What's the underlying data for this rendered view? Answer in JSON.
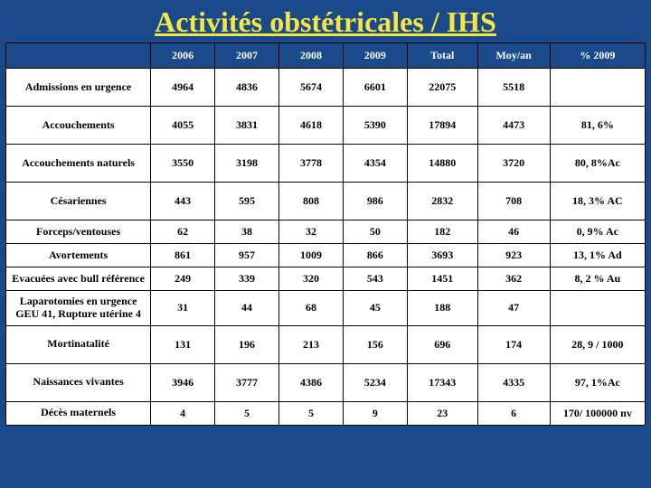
{
  "title": "Activités obstétricales / IHS",
  "colors": {
    "background": "#1a4a8a",
    "title_color": "#f5e642",
    "header_bg": "#1a4a8a",
    "header_text": "#ffffff",
    "cell_bg": "#ffffff",
    "cell_text": "#000000",
    "border": "#000000"
  },
  "columns": [
    "",
    "2006",
    "2007",
    "2008",
    "2009",
    "Total",
    "Moy/an",
    "% 2009"
  ],
  "rows": [
    {
      "label": "Admissions en urgence",
      "cells": [
        "4964",
        "4836",
        "5674",
        "6601",
        "22075",
        "5518",
        ""
      ]
    },
    {
      "label": "Accouchements",
      "cells": [
        "4055",
        "3831",
        "4618",
        "5390",
        "17894",
        "4473",
        "81, 6%"
      ]
    },
    {
      "label": "Accouchements naturels",
      "cells": [
        "3550",
        "3198",
        "3778",
        "4354",
        "14880",
        "3720",
        "80, 8%Ac"
      ]
    },
    {
      "label": "Césariennes",
      "cells": [
        "443",
        "595",
        "808",
        "986",
        "2832",
        "708",
        "18, 3% AC"
      ]
    },
    {
      "label": "Forceps/ventouses",
      "cells": [
        "62",
        "38",
        "32",
        "50",
        "182",
        "46",
        "0, 9% Ac"
      ]
    },
    {
      "label": "Avortements",
      "cells": [
        "861",
        "957",
        "1009",
        "866",
        "3693",
        "923",
        "13, 1% Ad"
      ]
    },
    {
      "label": "Evacuées avec bull référence",
      "cells": [
        "249",
        "339",
        "320",
        "543",
        "1451",
        "362",
        "8, 2 % Au"
      ]
    },
    {
      "label": "Laparotomies en urgence GEU 41, Rupture utérine 4",
      "cells": [
        "31",
        "44",
        "68",
        "45",
        "188",
        "47",
        ""
      ]
    },
    {
      "label": "Mortinatalité",
      "cells": [
        "131",
        "196",
        "213",
        "156",
        "696",
        "174",
        "28, 9 / 1000"
      ]
    },
    {
      "label": "Naissances vivantes",
      "cells": [
        "3946",
        "3777",
        "4386",
        "5234",
        "17343",
        "4335",
        "97, 1%Ac"
      ]
    },
    {
      "label": "Décès maternels",
      "cells": [
        "4",
        "5",
        "5",
        "9",
        "23",
        "6",
        "170/ 100000 nv"
      ]
    }
  ],
  "row_classes": [
    "tall",
    "tall",
    "tall",
    "tall",
    "short",
    "short",
    "short",
    "short",
    "tall",
    "tall",
    "short"
  ]
}
